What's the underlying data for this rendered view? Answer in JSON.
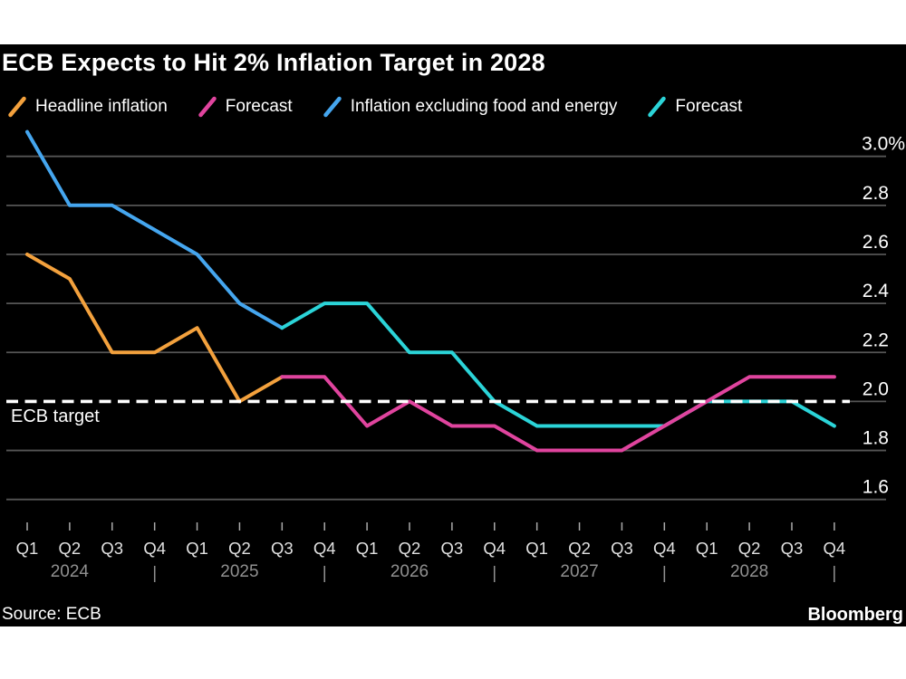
{
  "page": {
    "title": "ECB Expects to Hit 2% Inflation Target in 2028"
  },
  "legend": {
    "items": [
      {
        "label": "Headline inflation",
        "color_key": "headline"
      },
      {
        "label": "Forecast",
        "color_key": "headline_forecast"
      },
      {
        "label": "Inflation excluding food and energy",
        "color_key": "core"
      },
      {
        "label": "Forecast",
        "color_key": "core_forecast"
      }
    ]
  },
  "chart_data": {
    "type": "line",
    "title": "ECB Expects to Hit 2% Inflation Target in 2028",
    "colors": {
      "headline": "#F3A13D",
      "headline_forecast": "#E0449E",
      "core": "#45A6EF",
      "core_forecast": "#2BD4D8",
      "target": "#FFFFFF",
      "grid": "#555555",
      "quarter_text": "#E0E0E0",
      "year_text": "#909090",
      "tick_mark": "#AAAAAA",
      "y_label_text": "#FFFFFF"
    },
    "x_axis": {
      "quarters": [
        "Q1",
        "Q2",
        "Q3",
        "Q4",
        "Q1",
        "Q2",
        "Q3",
        "Q4",
        "Q1",
        "Q2",
        "Q3",
        "Q4",
        "Q1",
        "Q2",
        "Q3",
        "Q4",
        "Q1",
        "Q2",
        "Q3",
        "Q4"
      ],
      "years": [
        {
          "label": "2024",
          "center_index": 1,
          "separator_index": 3
        },
        {
          "label": "2025",
          "center_index": 5,
          "separator_index": 7
        },
        {
          "label": "2026",
          "center_index": 9,
          "separator_index": 11
        },
        {
          "label": "2027",
          "center_index": 13,
          "separator_index": 15
        },
        {
          "label": "2028",
          "center_index": 17,
          "separator_index": 19
        }
      ],
      "separator_glyph": "|"
    },
    "y_axis": {
      "unit_suffix_on_first": "%",
      "ticks": [
        {
          "label": "3.0%",
          "value": 3.0
        },
        {
          "label": "2.8",
          "value": 2.8
        },
        {
          "label": "2.6",
          "value": 2.6
        },
        {
          "label": "2.4",
          "value": 2.4
        },
        {
          "label": "2.2",
          "value": 2.2
        },
        {
          "label": "2.0",
          "value": 2.0
        },
        {
          "label": "1.8",
          "value": 1.8
        },
        {
          "label": "1.6",
          "value": 1.6
        }
      ],
      "ylim": [
        1.5,
        3.15
      ]
    },
    "target": {
      "label": "ECB target",
      "value": 2.0
    },
    "series": [
      {
        "name": "Headline inflation",
        "color_key": "headline",
        "kind": "actual",
        "start_index": 0,
        "values": [
          2.6,
          2.5,
          2.2,
          2.2,
          2.3,
          2.0,
          2.1
        ]
      },
      {
        "name": "Forecast",
        "color_key": "headline_forecast",
        "kind": "forecast",
        "start_index": 6,
        "values": [
          2.1,
          2.1,
          1.9,
          2.0,
          1.9,
          1.9,
          1.8,
          1.8,
          1.8,
          1.9,
          2.0,
          2.1,
          2.1,
          2.1
        ]
      },
      {
        "name": "Inflation excluding food and energy",
        "color_key": "core",
        "kind": "actual",
        "start_index": 0,
        "values": [
          3.1,
          2.8,
          2.8,
          2.7,
          2.6,
          2.4,
          2.3
        ]
      },
      {
        "name": "Forecast",
        "color_key": "core_forecast",
        "kind": "forecast",
        "start_index": 6,
        "values": [
          2.3,
          2.4,
          2.4,
          2.2,
          2.2,
          2.0,
          1.9,
          1.9,
          1.9,
          1.9,
          2.0,
          2.0,
          2.0,
          1.9
        ]
      }
    ]
  },
  "footer": {
    "source": "Source: ECB",
    "brand": "Bloomberg"
  }
}
